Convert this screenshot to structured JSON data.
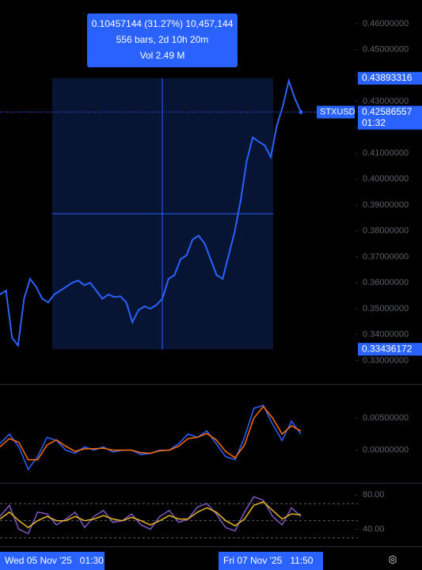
{
  "chart_data": [
    {
      "type": "line",
      "symbol": "STXUSD",
      "values": [
        0.3555,
        0.357,
        0.3388,
        0.3358,
        0.3539,
        0.3615,
        0.3585,
        0.3539,
        0.3524,
        0.3555,
        0.357,
        0.3585,
        0.36,
        0.3609,
        0.3591,
        0.36,
        0.357,
        0.3539,
        0.3555,
        0.3545,
        0.3548,
        0.3524,
        0.3448,
        0.3494,
        0.3509,
        0.35,
        0.3515,
        0.3539,
        0.3615,
        0.363,
        0.3691,
        0.3706,
        0.3767,
        0.3782,
        0.3752,
        0.3691,
        0.363,
        0.3615,
        0.3706,
        0.3797,
        0.3918,
        0.407,
        0.4161,
        0.4145,
        0.413,
        0.4085,
        0.4206,
        0.4282,
        0.4379,
        0.4312,
        0.42586557
      ],
      "color": "#2962ff",
      "ylim": [
        0.3225,
        0.4676
      ],
      "yticks": [
        {
          "value": 0.46,
          "label": "0.46000000"
        },
        {
          "value": 0.45,
          "label": "0.45000000"
        },
        {
          "value": 0.44,
          "label": "0.44000000"
        },
        {
          "value": 0.43,
          "label": "0.43000000"
        },
        {
          "value": 0.42,
          "label": "0.42000000"
        },
        {
          "value": 0.41,
          "label": "0.41000000"
        },
        {
          "value": 0.4,
          "label": "0.40000000"
        },
        {
          "value": 0.39,
          "label": "0.39000000"
        },
        {
          "value": 0.38,
          "label": "0.38000000"
        },
        {
          "value": 0.37,
          "label": "0.37000000"
        },
        {
          "value": 0.36,
          "label": "0.36000000"
        },
        {
          "value": 0.35,
          "label": "0.35000000"
        },
        {
          "value": 0.34,
          "label": "0.34000000"
        },
        {
          "value": 0.33,
          "label": "0.33000000"
        }
      ],
      "range_high": {
        "value": 0.43893316,
        "label": "0.43893316"
      },
      "range_low": {
        "value": 0.33436172,
        "label": "0.33436172"
      },
      "last_price": {
        "value": 0.42586557,
        "label": "0.42586557"
      },
      "countdown": "01:32",
      "measure_lines": [
        "0.10457144 (31.27%) 10,457,144",
        "556 bars, 2d 10h 20m",
        "Vol 2.49 M"
      ]
    },
    {
      "type": "line",
      "series": [
        {
          "color": "#2962ff",
          "values": [
            0.001,
            0.0025,
            0.0005,
            -0.003,
            -0.001,
            0.002,
            0.0015,
            0,
            -0.0005,
            0.0005,
            0,
            0.0005,
            -0.0003,
            0,
            0,
            -0.0007,
            -0.0005,
            0,
            0,
            0.001,
            0.0025,
            0.002,
            0.003,
            0.001,
            -0.001,
            -0.0015,
            0.002,
            0.0065,
            0.007,
            0.004,
            0.0015,
            0.0045,
            0.0025
          ]
        },
        {
          "color": "#ff6d00",
          "values": [
            0.0005,
            0.0018,
            0.0012,
            -0.0015,
            -0.0015,
            0.0008,
            0.0016,
            0.0006,
            -0.0002,
            0.0002,
            0.0002,
            0.0003,
            0,
            0,
            0,
            -0.0004,
            -0.0005,
            -0.0001,
            0,
            0.0006,
            0.0018,
            0.002,
            0.0026,
            0.0016,
            -0.0002,
            -0.0012,
            0.0008,
            0.005,
            0.0068,
            0.005,
            0.0025,
            0.0038,
            0.003
          ]
        }
      ],
      "ylim": [
        -0.0045,
        0.0097
      ],
      "yticks": [
        {
          "value": 0.005,
          "label": "0.00500000"
        },
        {
          "value": 0,
          "label": "0.00000000"
        }
      ]
    },
    {
      "type": "line",
      "series": [
        {
          "color": "#7e57c2",
          "values": [
            55,
            68,
            40,
            35,
            60,
            58,
            45,
            52,
            60,
            42,
            55,
            62,
            48,
            50,
            58,
            45,
            40,
            55,
            62,
            48,
            52,
            66,
            70,
            58,
            42,
            38,
            60,
            78,
            74,
            55,
            45,
            65,
            55
          ]
        },
        {
          "color": "#e6b422",
          "values": [
            52,
            60,
            50,
            42,
            50,
            55,
            50,
            50,
            55,
            50,
            52,
            56,
            52,
            50,
            54,
            50,
            45,
            50,
            56,
            52,
            52,
            60,
            65,
            60,
            50,
            44,
            52,
            68,
            72,
            62,
            52,
            58,
            57
          ]
        }
      ],
      "ylim": [
        24.8,
        89.5
      ],
      "bands": [
        70,
        50,
        30
      ],
      "yticks": [
        {
          "value": 80,
          "label": "80.00"
        },
        {
          "value": 40,
          "label": "40.00"
        }
      ]
    }
  ],
  "time_labels": [
    "Wed 05 Nov '25   01:30",
    "Fri 07 Nov '25   11:50"
  ]
}
